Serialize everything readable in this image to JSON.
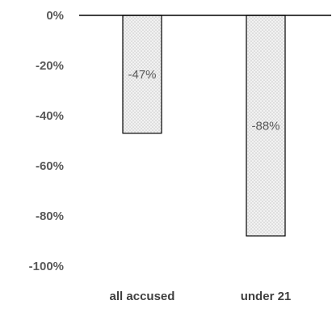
{
  "chart_data": {
    "type": "bar",
    "title": "",
    "xlabel": "",
    "ylabel": "",
    "categories": [
      "all accused",
      "under 21"
    ],
    "values": [
      -47,
      -88
    ],
    "data_labels": [
      "-47%",
      "-88%"
    ],
    "ylim": [
      -100,
      0
    ],
    "yticks": [
      0,
      -20,
      -40,
      -60,
      -80,
      -100
    ],
    "ytick_labels": [
      "0%",
      "-20%",
      "-40%",
      "-60%",
      "-80%",
      "-100%"
    ],
    "grid": false,
    "legend": "none",
    "colors": {
      "bar_fill": "#f2f2f2",
      "bar_dots": "#c8c8c8",
      "bar_border": "#000000",
      "axis": "#000000",
      "tick_text": "#595959",
      "category_text": "#404040"
    }
  }
}
